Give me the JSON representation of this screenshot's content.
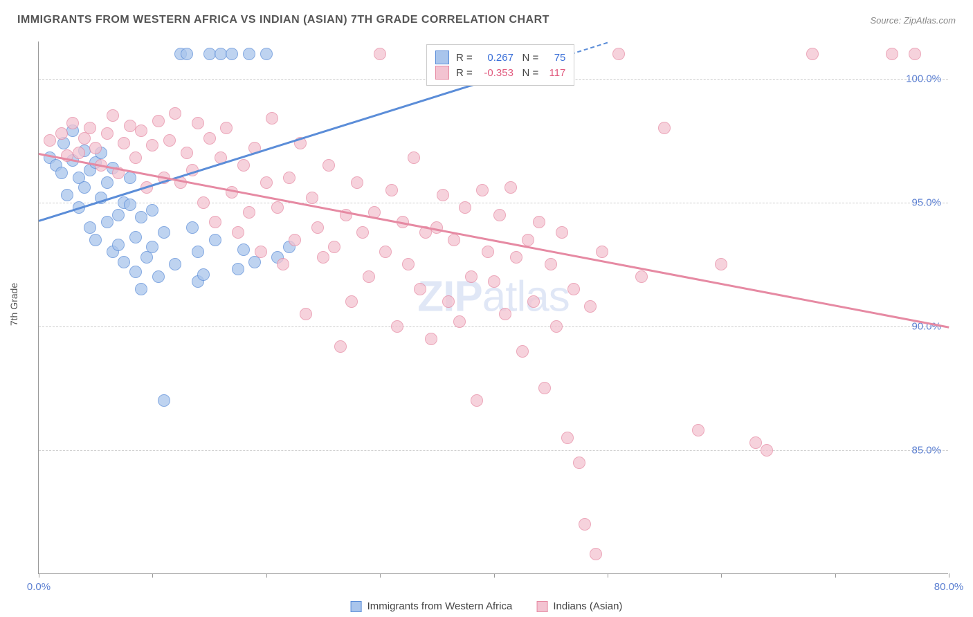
{
  "chart": {
    "type": "scatter",
    "title": "IMMIGRANTS FROM WESTERN AFRICA VS INDIAN (ASIAN) 7TH GRADE CORRELATION CHART",
    "source": "Source: ZipAtlas.com",
    "y_axis_label": "7th Grade",
    "watermark": "ZIPatlas",
    "background_color": "#ffffff",
    "grid_color": "#cccccc",
    "axis_color": "#999999",
    "tick_label_color": "#5b7fd1",
    "xlim": [
      0,
      80
    ],
    "ylim": [
      80,
      101.5
    ],
    "x_ticks": [
      0,
      10,
      20,
      30,
      40,
      50,
      60,
      70,
      80
    ],
    "x_tick_labels": {
      "0": "0.0%",
      "80": "80.0%"
    },
    "y_ticks": [
      85,
      90,
      95,
      100
    ],
    "y_tick_labels": {
      "85": "85.0%",
      "90": "90.0%",
      "95": "95.0%",
      "100": "100.0%"
    },
    "marker_radius": 9,
    "marker_stroke_width": 1.5,
    "marker_fill_opacity": 0.25,
    "series": [
      {
        "name": "Immigrants from Western Africa",
        "color_stroke": "#5b8dd8",
        "color_fill": "#a9c5ec",
        "R": 0.267,
        "N": 75,
        "trend": {
          "x1": 0,
          "y1": 94.3,
          "x2": 41,
          "y2": 100.2,
          "dash_to_x": 50
        },
        "points": [
          [
            1,
            96.8
          ],
          [
            1.5,
            96.5
          ],
          [
            2,
            96.2
          ],
          [
            2.2,
            97.4
          ],
          [
            2.5,
            95.3
          ],
          [
            3,
            96.7
          ],
          [
            3,
            97.9
          ],
          [
            3.5,
            96.0
          ],
          [
            3.5,
            94.8
          ],
          [
            4,
            95.6
          ],
          [
            4,
            97.1
          ],
          [
            4.5,
            96.3
          ],
          [
            4.5,
            94.0
          ],
          [
            5,
            96.6
          ],
          [
            5,
            93.5
          ],
          [
            5.5,
            95.2
          ],
          [
            5.5,
            97.0
          ],
          [
            6,
            94.2
          ],
          [
            6,
            95.8
          ],
          [
            6.5,
            93.0
          ],
          [
            6.5,
            96.4
          ],
          [
            7,
            94.5
          ],
          [
            7,
            93.3
          ],
          [
            7.5,
            92.6
          ],
          [
            7.5,
            95.0
          ],
          [
            8,
            94.9
          ],
          [
            8,
            96.0
          ],
          [
            8.5,
            93.6
          ],
          [
            8.5,
            92.2
          ],
          [
            9,
            94.4
          ],
          [
            9,
            91.5
          ],
          [
            9.5,
            92.8
          ],
          [
            10,
            93.2
          ],
          [
            10,
            94.7
          ],
          [
            10.5,
            92.0
          ],
          [
            11,
            93.8
          ],
          [
            11,
            87.0
          ],
          [
            12,
            92.5
          ],
          [
            12.5,
            101
          ],
          [
            13,
            101
          ],
          [
            13.5,
            94.0
          ],
          [
            14,
            93.0
          ],
          [
            14,
            91.8
          ],
          [
            14.5,
            92.1
          ],
          [
            15,
            101
          ],
          [
            15.5,
            93.5
          ],
          [
            16,
            101
          ],
          [
            17,
            101
          ],
          [
            17.5,
            92.3
          ],
          [
            18,
            93.1
          ],
          [
            18.5,
            101
          ],
          [
            19,
            92.6
          ],
          [
            20,
            101
          ],
          [
            21,
            92.8
          ],
          [
            22,
            93.2
          ]
        ]
      },
      {
        "name": "Indians (Asian)",
        "color_stroke": "#e68aa3",
        "color_fill": "#f3c3d1",
        "R": -0.353,
        "N": 117,
        "trend": {
          "x1": 0,
          "y1": 97.0,
          "x2": 80,
          "y2": 90.0
        },
        "points": [
          [
            1,
            97.5
          ],
          [
            2,
            97.8
          ],
          [
            2.5,
            96.9
          ],
          [
            3,
            98.2
          ],
          [
            3.5,
            97.0
          ],
          [
            4,
            97.6
          ],
          [
            4.5,
            98.0
          ],
          [
            5,
            97.2
          ],
          [
            5.5,
            96.5
          ],
          [
            6,
            97.8
          ],
          [
            6.5,
            98.5
          ],
          [
            7,
            96.2
          ],
          [
            7.5,
            97.4
          ],
          [
            8,
            98.1
          ],
          [
            8.5,
            96.8
          ],
          [
            9,
            97.9
          ],
          [
            9.5,
            95.6
          ],
          [
            10,
            97.3
          ],
          [
            10.5,
            98.3
          ],
          [
            11,
            96.0
          ],
          [
            11.5,
            97.5
          ],
          [
            12,
            98.6
          ],
          [
            12.5,
            95.8
          ],
          [
            13,
            97.0
          ],
          [
            13.5,
            96.3
          ],
          [
            14,
            98.2
          ],
          [
            14.5,
            95.0
          ],
          [
            15,
            97.6
          ],
          [
            15.5,
            94.2
          ],
          [
            16,
            96.8
          ],
          [
            16.5,
            98.0
          ],
          [
            17,
            95.4
          ],
          [
            17.5,
            93.8
          ],
          [
            18,
            96.5
          ],
          [
            18.5,
            94.6
          ],
          [
            19,
            97.2
          ],
          [
            19.5,
            93.0
          ],
          [
            20,
            95.8
          ],
          [
            20.5,
            98.4
          ],
          [
            21,
            94.8
          ],
          [
            21.5,
            92.5
          ],
          [
            22,
            96.0
          ],
          [
            22.5,
            93.5
          ],
          [
            23,
            97.4
          ],
          [
            23.5,
            90.5
          ],
          [
            24,
            95.2
          ],
          [
            24.5,
            94.0
          ],
          [
            25,
            92.8
          ],
          [
            25.5,
            96.5
          ],
          [
            26,
            93.2
          ],
          [
            26.5,
            89.2
          ],
          [
            27,
            94.5
          ],
          [
            27.5,
            91.0
          ],
          [
            28,
            95.8
          ],
          [
            28.5,
            93.8
          ],
          [
            29,
            92.0
          ],
          [
            29.5,
            94.6
          ],
          [
            30,
            101
          ],
          [
            30.5,
            93.0
          ],
          [
            31,
            95.5
          ],
          [
            31.5,
            90.0
          ],
          [
            32,
            94.2
          ],
          [
            32.5,
            92.5
          ],
          [
            33,
            96.8
          ],
          [
            33.5,
            91.5
          ],
          [
            34,
            93.8
          ],
          [
            34.5,
            89.5
          ],
          [
            35,
            94.0
          ],
          [
            35.5,
            95.3
          ],
          [
            36,
            91.0
          ],
          [
            36.5,
            93.5
          ],
          [
            37,
            90.2
          ],
          [
            37.5,
            94.8
          ],
          [
            38,
            92.0
          ],
          [
            38.5,
            87.0
          ],
          [
            39,
            95.5
          ],
          [
            39.5,
            93.0
          ],
          [
            40,
            91.8
          ],
          [
            40.5,
            94.5
          ],
          [
            41,
            90.5
          ],
          [
            41.5,
            95.6
          ],
          [
            42,
            92.8
          ],
          [
            42.5,
            89.0
          ],
          [
            43,
            93.5
          ],
          [
            43.5,
            91.0
          ],
          [
            44,
            94.2
          ],
          [
            44.5,
            87.5
          ],
          [
            45,
            92.5
          ],
          [
            45.5,
            90.0
          ],
          [
            46,
            93.8
          ],
          [
            46.5,
            85.5
          ],
          [
            47,
            91.5
          ],
          [
            47.5,
            84.5
          ],
          [
            48,
            82.0
          ],
          [
            48.5,
            90.8
          ],
          [
            49,
            80.8
          ],
          [
            49.5,
            93.0
          ],
          [
            51,
            101
          ],
          [
            53,
            92.0
          ],
          [
            55,
            98.0
          ],
          [
            58,
            85.8
          ],
          [
            60,
            92.5
          ],
          [
            63,
            85.3
          ],
          [
            64,
            85.0
          ],
          [
            68,
            101
          ],
          [
            75,
            101
          ],
          [
            77,
            101
          ]
        ]
      }
    ],
    "legend_stats": {
      "R_label": "R =",
      "N_label": "N ="
    },
    "bottom_legend": [
      {
        "label": "Immigrants from Western Africa",
        "series": 0
      },
      {
        "label": "Indians (Asian)",
        "series": 1
      }
    ]
  }
}
